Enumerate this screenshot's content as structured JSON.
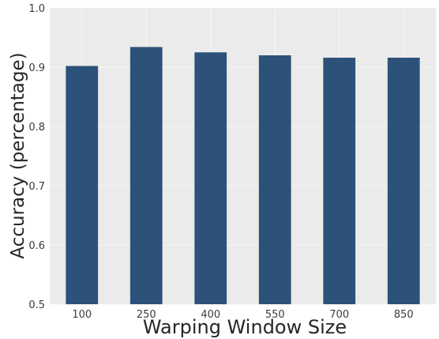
{
  "chart_data": {
    "type": "bar",
    "title": "",
    "xlabel": "Warping Window Size",
    "ylabel": "Accuracy (percentage)",
    "categories": [
      "100",
      "250",
      "400",
      "550",
      "700",
      "850"
    ],
    "values": [
      0.902,
      0.934,
      0.925,
      0.92,
      0.916,
      0.916
    ],
    "ylim": [
      0.5,
      1.0
    ],
    "yticks": [
      "0.5",
      "0.6",
      "0.7",
      "0.8",
      "0.9",
      "1.0"
    ],
    "grid": true,
    "legend": "none",
    "colors": {
      "bar": "#2c527a",
      "plot_background": "#ebebeb",
      "grid": "#f7f7f7"
    }
  }
}
